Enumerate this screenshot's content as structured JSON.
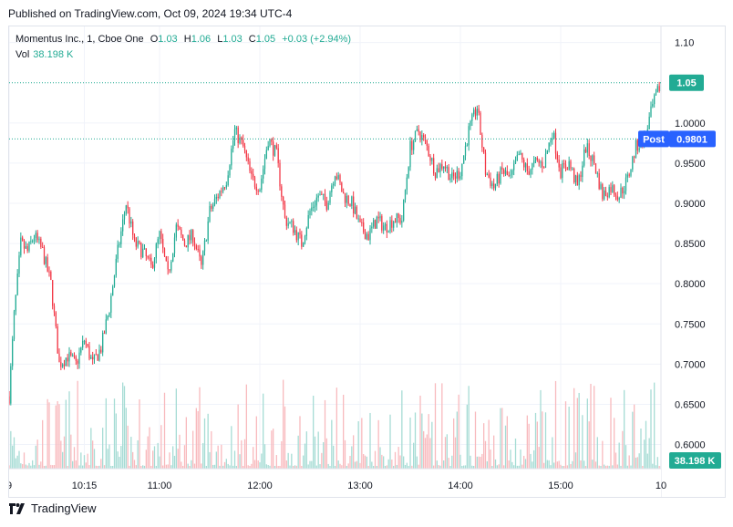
{
  "published": "Published on TradingView.com, Oct 09, 2024 19:34 UTC-4",
  "legend": {
    "symbol": "Momentus Inc., 1, Cboe One",
    "open_label": "O",
    "open": "1.03",
    "high_label": "H",
    "high": "1.06",
    "low_label": "L",
    "low": "1.03",
    "close_label": "C",
    "close": "1.05",
    "change": "+0.03 (+2.94%)",
    "vol_label": "Vol",
    "vol_value": "38.198 K"
  },
  "price_tags": {
    "last_price": "1.05",
    "post_label": "Post",
    "post_price": "0.9801",
    "volume": "38.198 K"
  },
  "footer": {
    "brand": "TradingView"
  },
  "colors": {
    "up": "#22ab94",
    "down": "#f23645",
    "up_vol": "#a5dcd4",
    "down_vol": "#f8b9bd",
    "post": "#2962ff",
    "grid": "#f0f3fa",
    "text": "#131722"
  },
  "chart_data": {
    "type": "candlestick",
    "title": "Momentus Inc., 1, Cboe One",
    "y_ticks": [
      "1.10",
      "1.0000",
      "0.9500",
      "0.9000",
      "0.8500",
      "0.8000",
      "0.7500",
      "0.7000",
      "0.6500",
      "0.6000"
    ],
    "y_tick_values": [
      1.1,
      1.0,
      0.95,
      0.9,
      0.85,
      0.8,
      0.75,
      0.7,
      0.65,
      0.6
    ],
    "ylim": [
      0.57,
      1.12
    ],
    "x_ticks": [
      "9",
      "10:15",
      "11:00",
      "12:00",
      "13:00",
      "14:00",
      "15:00",
      "10"
    ],
    "x_tick_times": [
      "09:30",
      "10:15",
      "11:00",
      "12:00",
      "13:00",
      "14:00",
      "15:00",
      "16:00"
    ],
    "x_range": [
      "09:30",
      "16:00"
    ],
    "grid": true,
    "series": [
      {
        "close_path": [
          [
            "09:30",
            0.66
          ],
          [
            "09:33",
            0.76
          ],
          [
            "09:37",
            0.85
          ],
          [
            "09:41",
            0.84
          ],
          [
            "09:45",
            0.86
          ],
          [
            "09:50",
            0.84
          ],
          [
            "09:55",
            0.8
          ],
          [
            "10:00",
            0.7
          ],
          [
            "10:05",
            0.71
          ],
          [
            "10:10",
            0.7
          ],
          [
            "10:15",
            0.73
          ],
          [
            "10:20",
            0.7
          ],
          [
            "10:25",
            0.72
          ],
          [
            "10:30",
            0.77
          ],
          [
            "10:35",
            0.84
          ],
          [
            "10:40",
            0.9
          ],
          [
            "10:45",
            0.85
          ],
          [
            "10:50",
            0.84
          ],
          [
            "10:55",
            0.82
          ],
          [
            "11:00",
            0.86
          ],
          [
            "11:05",
            0.81
          ],
          [
            "11:10",
            0.87
          ],
          [
            "11:15",
            0.85
          ],
          [
            "11:20",
            0.86
          ],
          [
            "11:25",
            0.82
          ],
          [
            "11:30",
            0.89
          ],
          [
            "11:35",
            0.91
          ],
          [
            "11:40",
            0.93
          ],
          [
            "11:45",
            0.99
          ],
          [
            "11:50",
            0.97
          ],
          [
            "11:55",
            0.93
          ],
          [
            "12:00",
            0.92
          ],
          [
            "12:05",
            0.98
          ],
          [
            "12:10",
            0.96
          ],
          [
            "12:15",
            0.88
          ],
          [
            "12:20",
            0.87
          ],
          [
            "12:25",
            0.85
          ],
          [
            "12:30",
            0.89
          ],
          [
            "12:35",
            0.91
          ],
          [
            "12:40",
            0.9
          ],
          [
            "12:45",
            0.94
          ],
          [
            "12:50",
            0.91
          ],
          [
            "12:55",
            0.9
          ],
          [
            "13:00",
            0.87
          ],
          [
            "13:05",
            0.86
          ],
          [
            "13:10",
            0.88
          ],
          [
            "13:15",
            0.87
          ],
          [
            "13:20",
            0.88
          ],
          [
            "13:25",
            0.88
          ],
          [
            "13:30",
            0.97
          ],
          [
            "13:35",
            0.99
          ],
          [
            "13:40",
            0.97
          ],
          [
            "13:45",
            0.94
          ],
          [
            "13:50",
            0.95
          ],
          [
            "13:55",
            0.93
          ],
          [
            "14:00",
            0.94
          ],
          [
            "14:05",
            0.99
          ],
          [
            "14:10",
            1.02
          ],
          [
            "14:15",
            0.94
          ],
          [
            "14:20",
            0.92
          ],
          [
            "14:25",
            0.94
          ],
          [
            "14:30",
            0.93
          ],
          [
            "14:35",
            0.96
          ],
          [
            "14:40",
            0.94
          ],
          [
            "14:45",
            0.95
          ],
          [
            "14:50",
            0.95
          ],
          [
            "14:55",
            0.99
          ],
          [
            "15:00",
            0.94
          ],
          [
            "15:05",
            0.95
          ],
          [
            "15:10",
            0.92
          ],
          [
            "15:15",
            0.97
          ],
          [
            "15:20",
            0.95
          ],
          [
            "15:25",
            0.91
          ],
          [
            "15:30",
            0.92
          ],
          [
            "15:35",
            0.91
          ],
          [
            "15:40",
            0.93
          ],
          [
            "15:45",
            0.97
          ],
          [
            "15:50",
            0.98
          ],
          [
            "15:55",
            1.02
          ],
          [
            "16:00",
            1.05
          ]
        ]
      }
    ]
  }
}
